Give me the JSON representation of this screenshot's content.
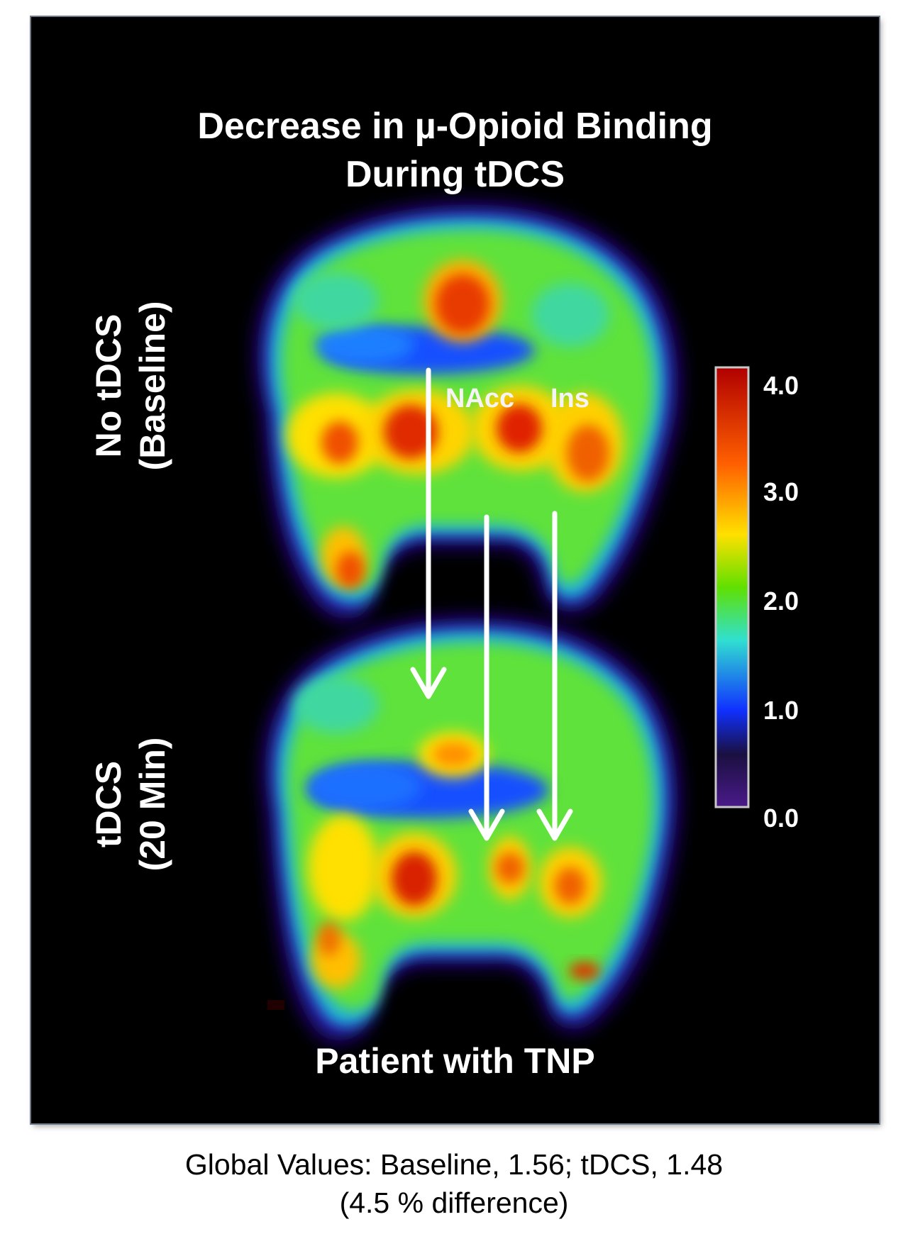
{
  "title_line1": "Decrease in µ-Opioid Binding",
  "title_line2": "During tDCS",
  "row_labels": {
    "baseline_line1": "No tDCS",
    "baseline_line2": "(Baseline)",
    "tdcs_line1": "tDCS",
    "tdcs_line2": "(20 Min)"
  },
  "regions": {
    "nacc": "NAcc",
    "ins": "Ins"
  },
  "colorbar": {
    "ticks": [
      "4.0",
      "3.0",
      "2.0",
      "1.0",
      "0.0"
    ],
    "colors": [
      "#4a1a8a",
      "#1030ff",
      "#30e0d0",
      "#60e000",
      "#ffe000",
      "#ff6000",
      "#b00000"
    ]
  },
  "footer": "Patient with TNP",
  "caption_line1": "Global Values: Baseline, 1.56; tDCS, 1.48",
  "caption_line2": "(4.5 % difference)"
}
